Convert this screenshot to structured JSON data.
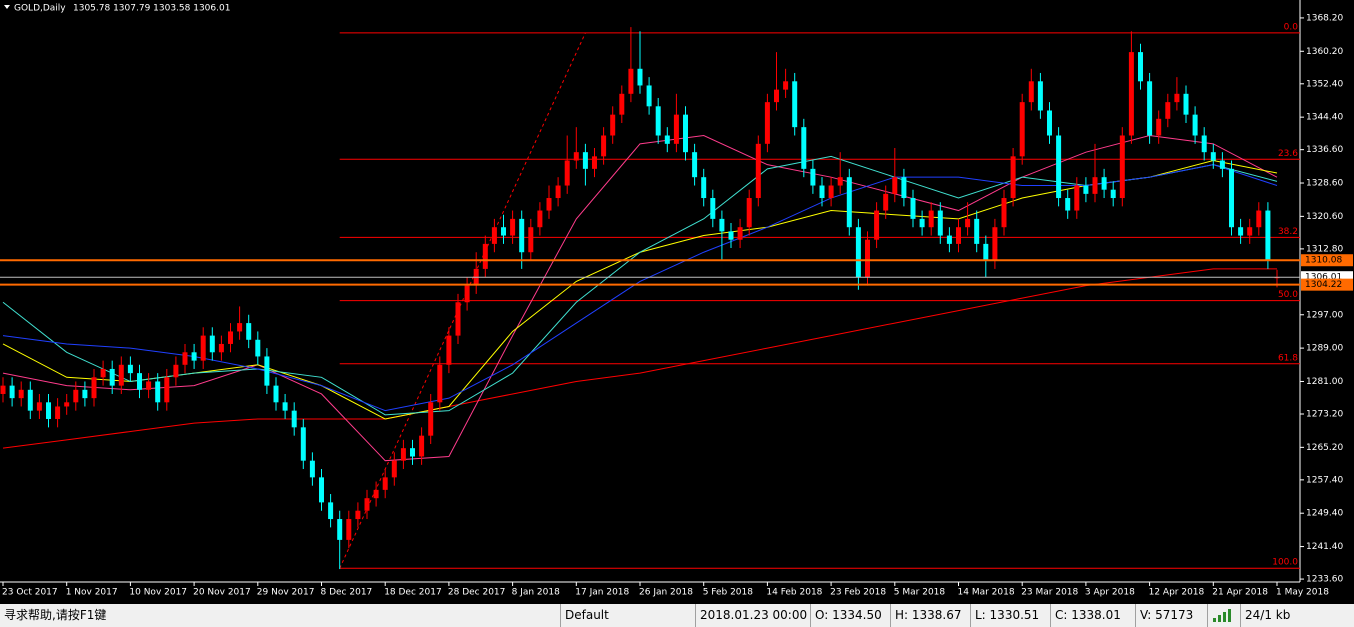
{
  "chart_data": {
    "type": "candlestick",
    "title": "GOLD,Daily",
    "subtitle": "1305.78 1307.79 1303.58 1306.01",
    "categories": [
      "23 Oct 2017",
      null,
      null,
      null,
      null,
      null,
      null,
      "1 Nov 2017",
      null,
      null,
      null,
      null,
      null,
      null,
      "10 Nov 2017",
      null,
      null,
      null,
      null,
      null,
      null,
      "20 Nov 2017",
      null,
      null,
      null,
      null,
      null,
      null,
      "29 Nov 2017",
      null,
      null,
      null,
      null,
      null,
      null,
      "8 Dec 2017",
      null,
      null,
      null,
      null,
      null,
      null,
      "18 Dec 2017",
      null,
      null,
      null,
      null,
      null,
      null,
      "28 Dec 2017",
      null,
      null,
      null,
      null,
      null,
      null,
      "8 Jan 2018",
      null,
      null,
      null,
      null,
      null,
      null,
      "17 Jan 2018",
      null,
      null,
      null,
      null,
      null,
      null,
      "26 Jan 2018",
      null,
      null,
      null,
      null,
      null,
      null,
      "5 Feb 2018",
      null,
      null,
      null,
      null,
      null,
      null,
      "14 Feb 2018",
      null,
      null,
      null,
      null,
      null,
      null,
      "23 Feb 2018",
      null,
      null,
      null,
      null,
      null,
      null,
      "5 Mar 2018",
      null,
      null,
      null,
      null,
      null,
      null,
      "14 Mar 2018",
      null,
      null,
      null,
      null,
      null,
      null,
      "23 Mar 2018",
      null,
      null,
      null,
      null,
      null,
      null,
      "3 Apr 2018",
      null,
      null,
      null,
      null,
      null,
      null,
      "12 Apr 2018",
      null,
      null,
      null,
      null,
      null,
      null,
      "21 Apr 2018",
      null,
      null,
      null,
      null,
      null,
      null,
      "1 May 2018"
    ],
    "open": [
      1278,
      1280,
      1277,
      1279,
      1274,
      1276,
      1272,
      1275,
      1276,
      1279,
      1277,
      1282,
      1284,
      1280,
      1285,
      1283,
      1279,
      1281,
      1276,
      1282,
      1285,
      1288,
      1286,
      1292,
      1288,
      1290,
      1293,
      1295,
      1291,
      1287,
      1280,
      1276,
      1274,
      1270,
      1262,
      1258,
      1252,
      1248,
      1243,
      1248,
      1250,
      1253,
      1255,
      1258,
      1262,
      1265,
      1263,
      1268,
      1276,
      1285,
      1292,
      1300,
      1304,
      1308,
      1314,
      1318,
      1316,
      1320,
      1312,
      1318,
      1322,
      1325,
      1328,
      1334,
      1336,
      1332,
      1335,
      1340,
      1345,
      1350,
      1356,
      1352,
      1347,
      1340,
      1338,
      1345,
      1336,
      1330,
      1325,
      1320,
      1317,
      1315,
      1318,
      1325,
      1338,
      1348,
      1351,
      1353,
      1342,
      1332,
      1328,
      1325,
      1328,
      1330,
      1318,
      1306,
      1315,
      1322,
      1326,
      1330,
      1325,
      1320,
      1318,
      1322,
      1316,
      1314,
      1318,
      1320,
      1314,
      1310,
      1318,
      1325,
      1335,
      1348,
      1353,
      1346,
      1340,
      1325,
      1322,
      1328,
      1326,
      1330,
      1327,
      1325,
      1340,
      1360,
      1353,
      1340,
      1344,
      1348,
      1350,
      1345,
      1340,
      1336,
      1334,
      1332,
      1318,
      1316,
      1318,
      1322,
      1305.78
    ],
    "high": [
      1282,
      1282,
      1281,
      1281,
      1278,
      1278,
      1277,
      1278,
      1281,
      1281,
      1284,
      1286,
      1286,
      1287,
      1287,
      1285,
      1283,
      1283,
      1284,
      1287,
      1290,
      1290,
      1294,
      1294,
      1292,
      1295,
      1299,
      1297,
      1293,
      1289,
      1282,
      1278,
      1276,
      1272,
      1264,
      1260,
      1254,
      1250,
      1250,
      1252,
      1255,
      1257,
      1260,
      1264,
      1267,
      1267,
      1270,
      1278,
      1287,
      1294,
      1302,
      1306,
      1312,
      1316,
      1320,
      1321,
      1322,
      1322,
      1320,
      1324,
      1328,
      1330,
      1340,
      1342,
      1338,
      1337,
      1342,
      1347,
      1352,
      1366,
      1365,
      1354,
      1349,
      1342,
      1350,
      1347,
      1338,
      1332,
      1327,
      1322,
      1319,
      1320,
      1327,
      1340,
      1350,
      1360,
      1356,
      1355,
      1344,
      1334,
      1330,
      1330,
      1336,
      1332,
      1320,
      1317,
      1324,
      1328,
      1337,
      1332,
      1327,
      1322,
      1324,
      1324,
      1318,
      1320,
      1324,
      1322,
      1316,
      1320,
      1327,
      1337,
      1350,
      1356,
      1355,
      1348,
      1342,
      1327,
      1330,
      1330,
      1338,
      1332,
      1329,
      1342,
      1365,
      1362,
      1355,
      1346,
      1350,
      1354,
      1352,
      1347,
      1342,
      1338,
      1336,
      1334,
      1320,
      1320,
      1324,
      1324,
      1307.79
    ],
    "low": [
      1276,
      1275,
      1275,
      1272,
      1272,
      1270,
      1270,
      1273,
      1274,
      1275,
      1275,
      1280,
      1278,
      1278,
      1281,
      1277,
      1277,
      1274,
      1274,
      1280,
      1283,
      1284,
      1284,
      1286,
      1286,
      1288,
      1291,
      1289,
      1285,
      1278,
      1274,
      1272,
      1268,
      1260,
      1256,
      1250,
      1246,
      1236,
      1241,
      1246,
      1248,
      1251,
      1253,
      1256,
      1260,
      1261,
      1261,
      1266,
      1274,
      1283,
      1290,
      1298,
      1302,
      1306,
      1312,
      1314,
      1314,
      1308,
      1310,
      1316,
      1320,
      1323,
      1326,
      1332,
      1328,
      1330,
      1333,
      1338,
      1343,
      1348,
      1350,
      1345,
      1338,
      1336,
      1336,
      1334,
      1328,
      1323,
      1318,
      1310,
      1313,
      1313,
      1316,
      1323,
      1336,
      1346,
      1349,
      1340,
      1330,
      1326,
      1323,
      1323,
      1326,
      1316,
      1303,
      1304,
      1313,
      1320,
      1324,
      1323,
      1318,
      1316,
      1316,
      1314,
      1312,
      1312,
      1316,
      1312,
      1306,
      1308,
      1316,
      1323,
      1333,
      1346,
      1344,
      1338,
      1323,
      1320,
      1320,
      1324,
      1324,
      1325,
      1323,
      1323,
      1338,
      1351,
      1338,
      1338,
      1342,
      1346,
      1343,
      1338,
      1334,
      1332,
      1330,
      1316,
      1314,
      1314,
      1316,
      1308,
      1303.58
    ],
    "close": [
      1280,
      1277,
      1279,
      1274,
      1276,
      1272,
      1275,
      1276,
      1279,
      1277,
      1282,
      1284,
      1280,
      1285,
      1283,
      1279,
      1281,
      1276,
      1282,
      1285,
      1288,
      1286,
      1292,
      1288,
      1290,
      1293,
      1295,
      1291,
      1287,
      1280,
      1276,
      1274,
      1270,
      1262,
      1258,
      1252,
      1248,
      1243,
      1248,
      1250,
      1253,
      1255,
      1258,
      1262,
      1265,
      1263,
      1268,
      1276,
      1285,
      1292,
      1300,
      1304,
      1308,
      1314,
      1318,
      1316,
      1320,
      1312,
      1318,
      1322,
      1325,
      1328,
      1334,
      1336,
      1332,
      1335,
      1340,
      1345,
      1350,
      1356,
      1352,
      1347,
      1340,
      1338,
      1345,
      1336,
      1330,
      1325,
      1320,
      1317,
      1315,
      1318,
      1325,
      1338,
      1348,
      1351,
      1353,
      1342,
      1332,
      1328,
      1325,
      1328,
      1330,
      1318,
      1306,
      1315,
      1322,
      1326,
      1330,
      1325,
      1320,
      1318,
      1322,
      1316,
      1314,
      1318,
      1320,
      1314,
      1310,
      1318,
      1325,
      1335,
      1348,
      1353,
      1346,
      1340,
      1325,
      1322,
      1328,
      1326,
      1330,
      1327,
      1325,
      1340,
      1360,
      1353,
      1340,
      1344,
      1348,
      1350,
      1345,
      1340,
      1336,
      1334,
      1332,
      1318,
      1316,
      1318,
      1322,
      1310,
      1306.01
    ],
    "up_color": "#ff0000",
    "down_color": "#00ffff",
    "ylim": [
      1232.9,
      1372.5
    ],
    "yticks": [
      {
        "value": 1368.2,
        "label": "1368.20"
      },
      {
        "value": 1360.2,
        "label": "1360.20"
      },
      {
        "value": 1352.4,
        "label": "1352.40"
      },
      {
        "value": 1344.4,
        "label": "1344.40"
      },
      {
        "value": 1336.6,
        "label": "1336.60"
      },
      {
        "value": 1328.6,
        "label": "1328.60"
      },
      {
        "value": 1320.6,
        "label": "1320.60"
      },
      {
        "value": 1312.8,
        "label": "1312.80"
      },
      {
        "value": 1297,
        "label": "1297.00"
      },
      {
        "value": 1289,
        "label": "1289.00"
      },
      {
        "value": 1281,
        "label": "1281.00"
      },
      {
        "value": 1273.2,
        "label": "1273.20"
      },
      {
        "value": 1265.2,
        "label": "1265.20"
      },
      {
        "value": 1257.4,
        "label": "1257.40"
      },
      {
        "value": 1249.4,
        "label": "1249.40"
      },
      {
        "value": 1241.4,
        "label": "1241.40"
      },
      {
        "value": 1233.6,
        "label": "1233.60"
      }
    ],
    "moving_averages": {
      "x": [
        0,
        7,
        14,
        21,
        28,
        35,
        42,
        49,
        56,
        63,
        70,
        77,
        84,
        91,
        98,
        105,
        112,
        119,
        126,
        133,
        140
      ],
      "series": [
        {
          "color": "#ff0000",
          "values": [
            1265,
            1267,
            1269,
            1271,
            1272,
            1272,
            1272,
            1275,
            1278,
            1281,
            1283,
            1286,
            1289,
            1292,
            1295,
            1298,
            1301,
            1304,
            1306,
            1308,
            1308
          ]
        },
        {
          "color": "#ff3c8c",
          "values": [
            1283,
            1280,
            1279,
            1280,
            1285,
            1278,
            1262,
            1263,
            1292,
            1320,
            1338,
            1340,
            1333,
            1330,
            1326,
            1322,
            1330,
            1336,
            1340,
            1338,
            1330
          ]
        },
        {
          "color": "#ffff00",
          "values": [
            1290,
            1282,
            1281,
            1283,
            1285,
            1280,
            1272,
            1275,
            1293,
            1305,
            1312,
            1316,
            1318,
            1322,
            1321,
            1320,
            1325,
            1328,
            1330,
            1334,
            1331
          ]
        },
        {
          "color": "#40e0d0",
          "values": [
            1300,
            1288,
            1281,
            1283,
            1284,
            1282,
            1273,
            1274,
            1283,
            1300,
            1312,
            1320,
            1332,
            1335,
            1330,
            1325,
            1330,
            1328,
            1330,
            1333,
            1329
          ]
        },
        {
          "color": "#2040ff",
          "values": [
            1292,
            1290,
            1289,
            1287,
            1284,
            1280,
            1274,
            1277,
            1285,
            1295,
            1305,
            1312,
            1318,
            1325,
            1330,
            1330,
            1328,
            1328,
            1330,
            1333,
            1328
          ]
        }
      ]
    },
    "price_lines": [
      {
        "value": 1306.01,
        "color": "#c0c0c0"
      },
      {
        "value": 1310.08,
        "color": "#ff6a00"
      },
      {
        "value": 1304.22,
        "color": "#ff6a00"
      }
    ],
    "fibonacci": {
      "color": "#ff0000",
      "start": 37,
      "levels": [
        {
          "price": 1364.6,
          "label": "0.0"
        },
        {
          "price": 1334.3,
          "label": "23.6"
        },
        {
          "price": 1315.55,
          "label": "38.2"
        },
        {
          "price": 1300.4,
          "label": "50.0"
        },
        {
          "price": 1285.25,
          "label": "61.8"
        },
        {
          "price": 1236.2,
          "label": "100.0"
        }
      ]
    },
    "trendline": {
      "color": "#ff0000",
      "x": [
        37,
        64
      ],
      "y": [
        1236.2,
        1364.6
      ]
    }
  },
  "status_bar": {
    "help": "寻求帮助,请按F1键",
    "profile": "Default",
    "time": "2018.01.23 00:00",
    "open": "O: 1334.50",
    "high": "H: 1338.67",
    "low": "L: 1330.51",
    "close": "C: 1338.01",
    "volume": "V: 57173",
    "traffic": "24/1 kb"
  }
}
